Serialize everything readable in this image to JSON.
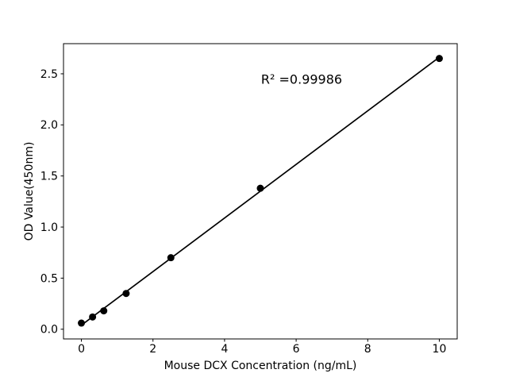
{
  "figure": {
    "background": "#ffffff",
    "title": ""
  },
  "chart_data": {
    "type": "scatter",
    "title": "",
    "xlabel": "Mouse DCX Concentration (ng/mL)",
    "ylabel": "OD Value(450nm)",
    "annotation": "R² =0.99986",
    "x": [
      0,
      0.3125,
      0.625,
      1.25,
      2.5,
      5,
      10
    ],
    "y": [
      0.06,
      0.12,
      0.18,
      0.35,
      0.7,
      1.38,
      2.65
    ],
    "fit_line": true,
    "xticks": [
      0,
      2,
      4,
      6,
      8,
      10
    ],
    "xtick_labels": [
      "0",
      "2",
      "4",
      "6",
      "8",
      "10"
    ],
    "yticks": [
      0.0,
      0.5,
      1.0,
      1.5,
      2.0,
      2.5
    ],
    "ytick_labels": [
      "0.0",
      "0.5",
      "1.0",
      "1.5",
      "2.0",
      "2.5"
    ],
    "xlim": [
      -0.5,
      10.5
    ],
    "ylim": [
      -0.095,
      2.795
    ],
    "grid": false,
    "legend": null,
    "marker_color": "#000000",
    "marker_radius": 4.5,
    "line_color": "#000000",
    "line_width": 1.7,
    "axis_color": "#000000",
    "tick_font_size": 14
  }
}
